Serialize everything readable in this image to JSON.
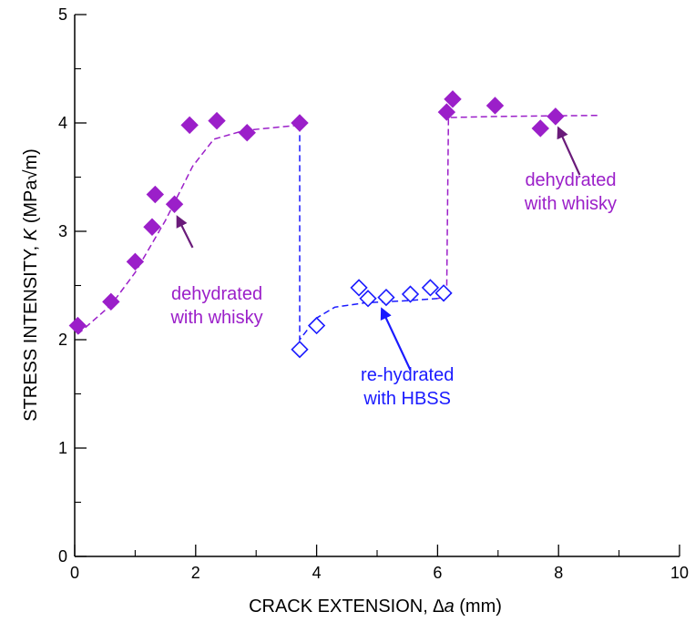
{
  "chart_data": {
    "type": "scatter",
    "xlabel_prefix": "CRACK EXTENSION, ",
    "xlabel_symbol": "∆a",
    "xlabel_suffix": " (mm)",
    "ylabel_prefix": "STRESS INTENSITY, ",
    "ylabel_symbol": "K",
    "ylabel_suffix": " (MPa√m)",
    "xlim": [
      0,
      10
    ],
    "ylim": [
      0,
      5
    ],
    "x_ticks": [
      "0",
      "2",
      "4",
      "6",
      "8",
      "10"
    ],
    "y_ticks": [
      "0",
      "1",
      "2",
      "3",
      "4",
      "5"
    ],
    "grid": false,
    "colors": {
      "dehydrated": "#9b1fc9",
      "rehydrated": "#1a1aff",
      "arrow_dehydrated": "#6a1b7a"
    },
    "series": [
      {
        "marker": "filled-diamond",
        "points": [
          [
            0.05,
            2.13
          ],
          [
            0.6,
            2.35
          ],
          [
            1.0,
            2.72
          ],
          [
            1.28,
            3.04
          ],
          [
            1.33,
            3.34
          ],
          [
            1.65,
            3.25
          ],
          [
            1.9,
            3.98
          ],
          [
            2.35,
            4.02
          ],
          [
            2.85,
            3.91
          ],
          [
            3.72,
            4.0
          ]
        ]
      },
      {
        "marker": "open-diamond",
        "points": [
          [
            3.72,
            1.91
          ],
          [
            4.0,
            2.13
          ],
          [
            4.7,
            2.48
          ],
          [
            4.85,
            2.38
          ],
          [
            5.15,
            2.39
          ],
          [
            5.55,
            2.42
          ],
          [
            5.88,
            2.48
          ],
          [
            6.1,
            2.43
          ]
        ]
      },
      {
        "marker": "filled-diamond",
        "points": [
          [
            6.15,
            4.1
          ],
          [
            6.25,
            4.22
          ],
          [
            6.95,
            4.16
          ],
          [
            7.7,
            3.95
          ],
          [
            7.95,
            4.06
          ]
        ]
      }
    ],
    "fit_lines": [
      {
        "color": "dehydrated",
        "points": [
          [
            0.05,
            2.05
          ],
          [
            0.6,
            2.32
          ],
          [
            1.0,
            2.62
          ],
          [
            1.5,
            3.1
          ],
          [
            1.95,
            3.6
          ],
          [
            2.3,
            3.85
          ],
          [
            2.8,
            3.93
          ],
          [
            3.72,
            3.98
          ]
        ]
      },
      {
        "color": "rehydrated",
        "points": [
          [
            3.72,
            3.98
          ],
          [
            3.72,
            2.0
          ],
          [
            4.0,
            2.2
          ],
          [
            4.3,
            2.3
          ],
          [
            4.8,
            2.34
          ],
          [
            5.5,
            2.36
          ],
          [
            6.0,
            2.38
          ]
        ]
      },
      {
        "color": "dehydrated",
        "points": [
          [
            6.0,
            2.38
          ],
          [
            6.15,
            2.4
          ],
          [
            6.18,
            4.05
          ],
          [
            7.0,
            4.06
          ],
          [
            8.7,
            4.07
          ]
        ]
      }
    ],
    "annotations": [
      {
        "lines": [
          "dehydrated",
          "with whisky"
        ],
        "color": "dehydrated",
        "anchor": [
          2.35,
          2.37
        ],
        "arrow_from": [
          1.95,
          2.85
        ],
        "arrow_to": [
          1.7,
          3.13
        ]
      },
      {
        "lines": [
          "re-hydrated",
          "with HBSS"
        ],
        "color": "rehydrated",
        "anchor": [
          5.5,
          1.62
        ],
        "arrow_from": [
          5.55,
          1.72
        ],
        "arrow_to": [
          5.08,
          2.28
        ]
      },
      {
        "lines": [
          "dehydrated",
          "with whisky"
        ],
        "color": "dehydrated",
        "anchor": [
          8.2,
          3.42
        ],
        "arrow_from": [
          8.35,
          3.52
        ],
        "arrow_to": [
          8.0,
          3.95
        ]
      }
    ]
  }
}
